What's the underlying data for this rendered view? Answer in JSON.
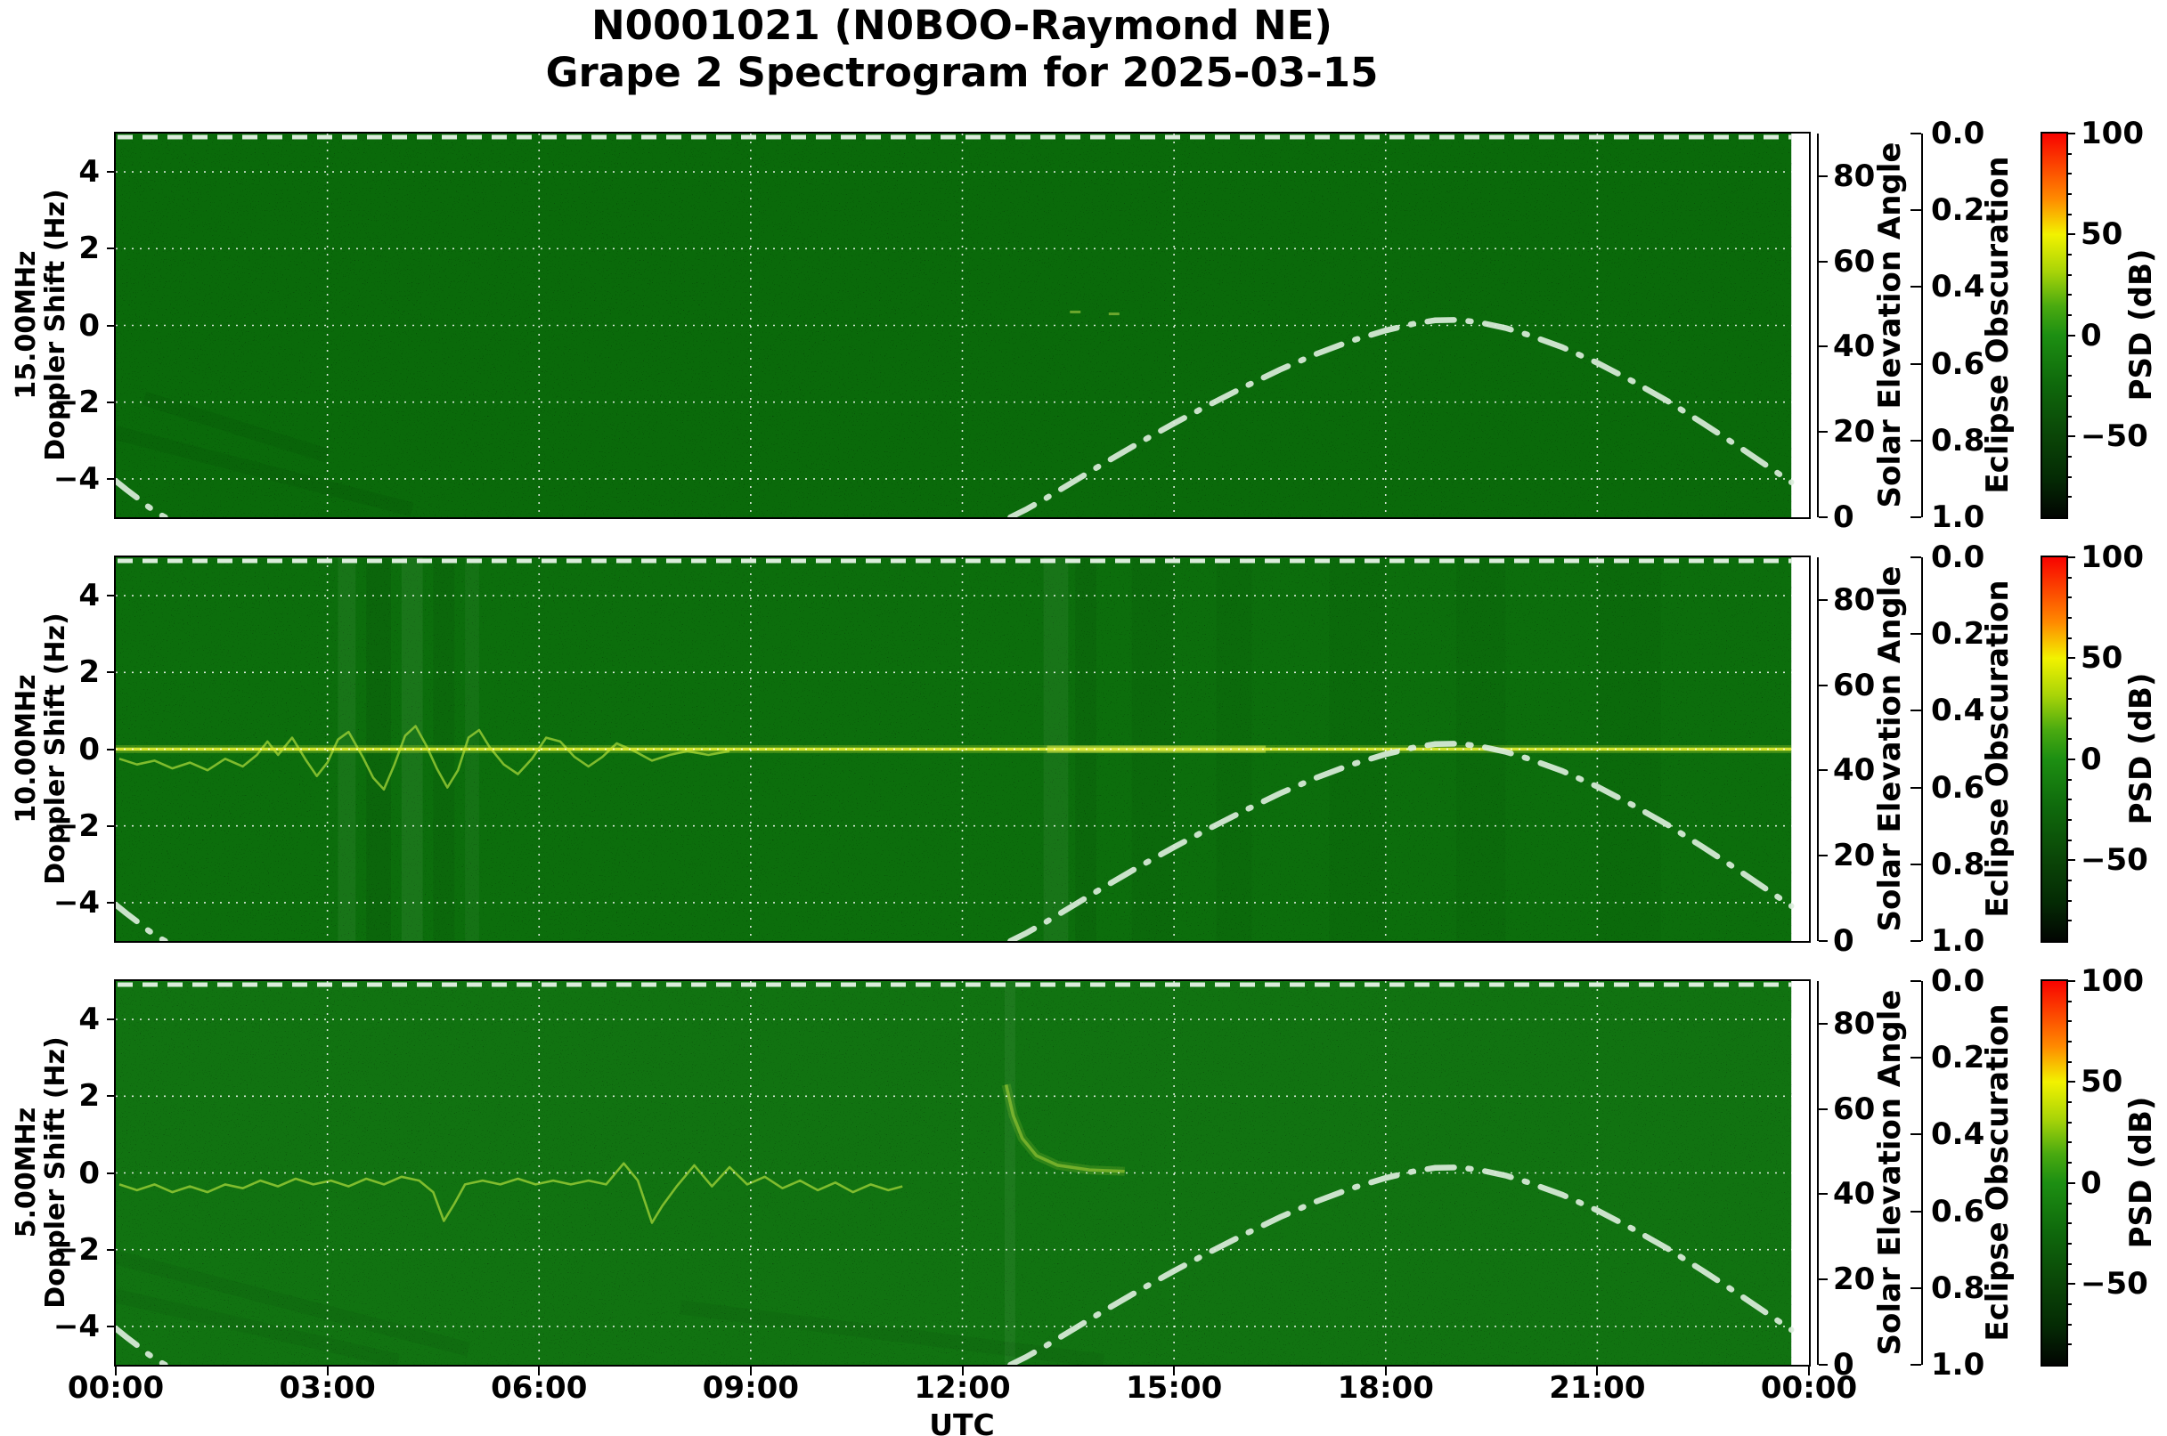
{
  "chart_data": {
    "type": "heatmap",
    "subtype": "doppler-spectrogram",
    "title_line1": "N0001021 (N0BOO-Raymond NE)",
    "title_line2": "Grape 2 Spectrogram for 2025-03-15",
    "xlabel": "UTC",
    "x_axis": {
      "range_hours": [
        0,
        24
      ],
      "tick_hours": [
        0,
        3,
        6,
        9,
        12,
        15,
        18,
        21,
        24
      ],
      "tick_labels": [
        "00:00",
        "03:00",
        "06:00",
        "09:00",
        "12:00",
        "15:00",
        "18:00",
        "21:00",
        "00:00"
      ],
      "grid_hours": [
        3,
        6,
        9,
        12,
        15,
        18,
        21
      ],
      "data_end_hour": 23.75
    },
    "doppler_axis": {
      "label": "Doppler Shift (Hz)",
      "range": [
        -5,
        5
      ],
      "tick_values": [
        4,
        2,
        0,
        -2,
        -4
      ],
      "tick_labels": [
        "4",
        "2",
        "0",
        "−2",
        "−4"
      ]
    },
    "solar_axis": {
      "label": "Solar Elevation Angle",
      "range": [
        0,
        90
      ],
      "tick_values": [
        80,
        60,
        40,
        20,
        0
      ],
      "tick_labels": [
        "80",
        "60",
        "40",
        "20",
        "0"
      ]
    },
    "eclipse_axis": {
      "label": "Eclipse Obscuration",
      "range": [
        0.0,
        1.0
      ],
      "inverted": true,
      "tick_labels": [
        "0.0",
        "0.2",
        "0.4",
        "0.6",
        "0.8",
        "1.0"
      ],
      "observed_value": 0.0
    },
    "colorbar": {
      "label": "PSD (dB)",
      "range": [
        -90,
        100
      ],
      "tick_values": [
        100,
        50,
        0,
        -50
      ],
      "tick_labels": [
        "100",
        "50",
        "0",
        "−50"
      ],
      "minor_step_db": 10,
      "gradient_top_to_bottom": [
        [
          "0%",
          "#f80300"
        ],
        [
          "9%",
          "#fc4a00"
        ],
        [
          "17%",
          "#ff8a00"
        ],
        [
          "26.3%",
          "#f2f200"
        ],
        [
          "36%",
          "#a8d408"
        ],
        [
          "45%",
          "#4aaa10"
        ],
        [
          "52.6%",
          "#1d8f12"
        ],
        [
          "65%",
          "#0f6a0c"
        ],
        [
          "78.9%",
          "#0a4507"
        ],
        [
          "90%",
          "#042a04"
        ],
        [
          "100%",
          "#020502"
        ]
      ]
    },
    "solar_elevation_curve": {
      "style": "dash-dot",
      "color": "#dbeddb",
      "morning_tail_deg": [
        [
          0,
          8.5
        ],
        [
          0.15,
          6.5
        ],
        [
          0.3,
          4.6
        ],
        [
          0.45,
          2.6
        ],
        [
          0.6,
          0.9
        ],
        [
          0.7,
          0
        ]
      ],
      "main_arc_deg": [
        [
          12.68,
          0
        ],
        [
          12.9,
          1.8
        ],
        [
          13.2,
          4.6
        ],
        [
          13.5,
          7.6
        ],
        [
          14,
          12.6
        ],
        [
          14.5,
          17.4
        ],
        [
          15,
          22.0
        ],
        [
          15.5,
          26.4
        ],
        [
          16,
          30.6
        ],
        [
          16.5,
          34.6
        ],
        [
          17,
          38.2
        ],
        [
          17.5,
          41.3
        ],
        [
          18,
          43.8
        ],
        [
          18.4,
          45.4
        ],
        [
          18.7,
          46.2
        ],
        [
          19,
          46.3
        ],
        [
          19.3,
          45.8
        ],
        [
          19.7,
          44.4
        ],
        [
          20,
          42.9
        ],
        [
          20.5,
          39.9
        ],
        [
          21,
          36.2
        ],
        [
          21.5,
          31.9
        ],
        [
          22,
          27.2
        ],
        [
          22.5,
          22.0
        ],
        [
          23,
          16.6
        ],
        [
          23.5,
          11.0
        ],
        [
          23.75,
          8.2
        ]
      ],
      "peak_deg": 46.3,
      "peak_hour_utc": 18.9,
      "sunrise_hour_utc": 12.68,
      "sunset_hour_utc": 0.7
    },
    "panels": [
      {
        "freq_label": "15.00MHz",
        "base_color": "#0a6a0a",
        "carrier_line_at_0hz": false,
        "trace_hz": [],
        "dots_hz": [
          [
            13.6,
            0.35
          ],
          [
            14.15,
            0.3
          ]
        ],
        "bands": [],
        "diag_shadows": [
          [
            0,
            -2.8,
            4.2,
            -4.8
          ],
          [
            0.4,
            -1.9,
            3.0,
            -3.4
          ]
        ]
      },
      {
        "freq_label": "10.00MHz",
        "base_color": "#0c6e0c",
        "carrier_line_at_0hz": true,
        "carrier_color": "#d4e62e",
        "bright_blob_hours": [
          13.2,
          16.3
        ],
        "trace_hz": [
          [
            0.05,
            -0.25
          ],
          [
            0.3,
            -0.4
          ],
          [
            0.55,
            -0.3
          ],
          [
            0.8,
            -0.5
          ],
          [
            1.05,
            -0.35
          ],
          [
            1.3,
            -0.55
          ],
          [
            1.55,
            -0.25
          ],
          [
            1.8,
            -0.45
          ],
          [
            2.0,
            -0.15
          ],
          [
            2.15,
            0.2
          ],
          [
            2.3,
            -0.15
          ],
          [
            2.5,
            0.3
          ],
          [
            2.7,
            -0.3
          ],
          [
            2.85,
            -0.7
          ],
          [
            3.0,
            -0.35
          ],
          [
            3.15,
            0.25
          ],
          [
            3.3,
            0.45
          ],
          [
            3.5,
            -0.2
          ],
          [
            3.65,
            -0.75
          ],
          [
            3.8,
            -1.05
          ],
          [
            3.95,
            -0.4
          ],
          [
            4.1,
            0.35
          ],
          [
            4.25,
            0.6
          ],
          [
            4.4,
            0.1
          ],
          [
            4.55,
            -0.5
          ],
          [
            4.7,
            -1.0
          ],
          [
            4.85,
            -0.55
          ],
          [
            5.0,
            0.3
          ],
          [
            5.15,
            0.5
          ],
          [
            5.3,
            0.05
          ],
          [
            5.5,
            -0.4
          ],
          [
            5.7,
            -0.65
          ],
          [
            5.9,
            -0.25
          ],
          [
            6.1,
            0.3
          ],
          [
            6.3,
            0.2
          ],
          [
            6.5,
            -0.2
          ],
          [
            6.7,
            -0.45
          ],
          [
            6.9,
            -0.2
          ],
          [
            7.1,
            0.15
          ],
          [
            7.35,
            -0.05
          ],
          [
            7.6,
            -0.3
          ],
          [
            7.85,
            -0.15
          ],
          [
            8.1,
            -0.05
          ],
          [
            8.4,
            -0.15
          ],
          [
            8.7,
            -0.05
          ]
        ],
        "dots_hz": [],
        "bands": [
          [
            3.15,
            0.25,
            "#ffffff",
            0.05
          ],
          [
            3.55,
            0.35,
            "#000000",
            0.07
          ],
          [
            4.05,
            0.3,
            "#ffffff",
            0.06
          ],
          [
            4.5,
            0.3,
            "#000000",
            0.05
          ],
          [
            4.95,
            0.2,
            "#ffffff",
            0.04
          ],
          [
            13.15,
            0.35,
            "#ffffff",
            0.05
          ],
          [
            13.6,
            0.3,
            "#000000",
            0.05
          ],
          [
            14.4,
            0.6,
            "#000000",
            0.04
          ],
          [
            15.6,
            0.5,
            "#000000",
            0.035
          ],
          [
            17.2,
            0.8,
            "#000000",
            0.03
          ],
          [
            19.0,
            0.7,
            "#000000",
            0.035
          ],
          [
            21.0,
            0.9,
            "#000000",
            0.03
          ]
        ],
        "diag_shadows": []
      },
      {
        "freq_label": "5.00MHz",
        "base_color": "#117311",
        "carrier_line_at_0hz": false,
        "trace_hz": [
          [
            0.05,
            -0.3
          ],
          [
            0.3,
            -0.45
          ],
          [
            0.55,
            -0.3
          ],
          [
            0.8,
            -0.5
          ],
          [
            1.05,
            -0.35
          ],
          [
            1.3,
            -0.5
          ],
          [
            1.55,
            -0.3
          ],
          [
            1.8,
            -0.4
          ],
          [
            2.05,
            -0.2
          ],
          [
            2.3,
            -0.35
          ],
          [
            2.55,
            -0.15
          ],
          [
            2.8,
            -0.3
          ],
          [
            3.05,
            -0.2
          ],
          [
            3.3,
            -0.35
          ],
          [
            3.55,
            -0.15
          ],
          [
            3.8,
            -0.3
          ],
          [
            4.05,
            -0.1
          ],
          [
            4.3,
            -0.2
          ],
          [
            4.5,
            -0.5
          ],
          [
            4.65,
            -1.25
          ],
          [
            4.8,
            -0.8
          ],
          [
            4.95,
            -0.3
          ],
          [
            5.2,
            -0.2
          ],
          [
            5.45,
            -0.3
          ],
          [
            5.7,
            -0.15
          ],
          [
            5.95,
            -0.3
          ],
          [
            6.2,
            -0.2
          ],
          [
            6.45,
            -0.3
          ],
          [
            6.7,
            -0.2
          ],
          [
            6.95,
            -0.3
          ],
          [
            7.2,
            0.25
          ],
          [
            7.4,
            -0.2
          ],
          [
            7.6,
            -1.3
          ],
          [
            7.75,
            -0.85
          ],
          [
            7.95,
            -0.35
          ],
          [
            8.2,
            0.2
          ],
          [
            8.45,
            -0.35
          ],
          [
            8.7,
            0.15
          ],
          [
            8.95,
            -0.3
          ],
          [
            9.2,
            -0.1
          ],
          [
            9.45,
            -0.4
          ],
          [
            9.7,
            -0.2
          ],
          [
            9.95,
            -0.45
          ],
          [
            10.2,
            -0.25
          ],
          [
            10.45,
            -0.5
          ],
          [
            10.7,
            -0.3
          ],
          [
            10.95,
            -0.45
          ],
          [
            11.15,
            -0.35
          ]
        ],
        "smudge_hz": [
          [
            12.62,
            2.3
          ],
          [
            12.72,
            1.5
          ],
          [
            12.85,
            0.9
          ],
          [
            13.05,
            0.45
          ],
          [
            13.35,
            0.2
          ],
          [
            13.8,
            0.08
          ],
          [
            14.3,
            0.04
          ]
        ],
        "dots_hz": [],
        "bands": [
          [
            12.6,
            0.15,
            "#ffffff",
            0.05
          ]
        ],
        "diag_shadows": [
          [
            0,
            -2.2,
            5.0,
            -4.6
          ],
          [
            0,
            -3.2,
            4.0,
            -4.9
          ],
          [
            8,
            -3.5,
            14,
            -4.9
          ]
        ]
      }
    ],
    "grid": {
      "on": true,
      "style": "dotted-white"
    },
    "legend_position": "none"
  }
}
